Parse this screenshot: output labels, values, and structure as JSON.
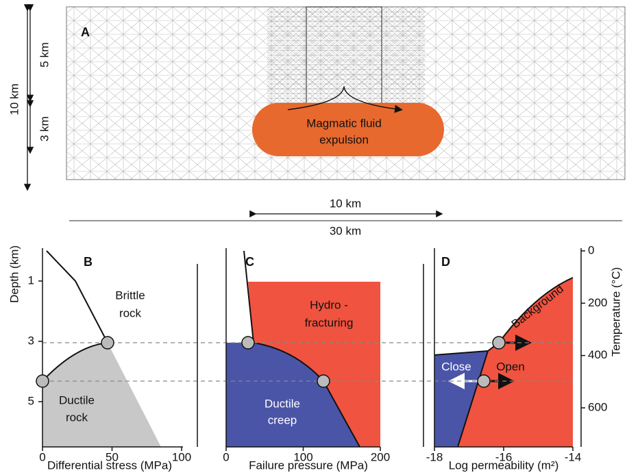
{
  "panel_a": {
    "label": "A",
    "annotation": [
      "Magmatic fluid",
      "expulsion"
    ],
    "scale_height": "10 km",
    "scale_upper": "5 km",
    "scale_lower": "3 km",
    "scale_inner": "10 km",
    "scale_width": "30 km"
  },
  "panel_b": {
    "label": "B",
    "x_label": "Differential stress (MPa)",
    "y_label": "Depth (km)",
    "xticks": [
      0,
      50,
      100
    ],
    "yticks": [
      1,
      3,
      5
    ],
    "brittle": [
      "Brittle",
      "rock"
    ],
    "ductile": [
      "Ductile",
      "rock"
    ]
  },
  "panel_c": {
    "label": "C",
    "x_label": "Failure pressure  (MPa)",
    "xticks": [
      0,
      100,
      200
    ],
    "hydro": [
      "Hydro -",
      "fracturing"
    ],
    "ductile": [
      "Ductile",
      "creep"
    ]
  },
  "panel_d": {
    "label": "D",
    "x_label": "Log permeability (m²)",
    "xticks": [
      -18,
      -16,
      -14
    ],
    "y2_label": "Temperature (°C)",
    "y2ticks": [
      0,
      200,
      400,
      600
    ],
    "background": "Background",
    "close": "Close",
    "open": "Open"
  }
}
